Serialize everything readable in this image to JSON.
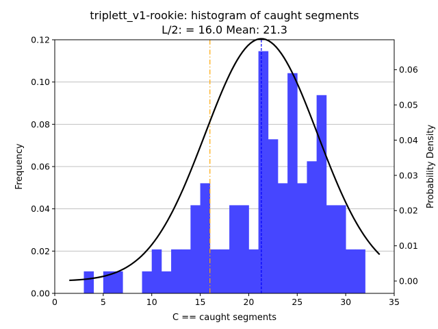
{
  "chart_data": {
    "type": "bar",
    "title": "triplett_v1-rookie: histogram of caught segments",
    "subtitle": "L/2: = 16.0 Mean: 21.3",
    "xlabel": "C == caught segments",
    "ylabel": "Frequency",
    "ylabel_right": "Probability Density",
    "xlim": [
      0,
      35
    ],
    "ylim": [
      0,
      0.12
    ],
    "ylim_right": [
      -0.0035,
      0.0685
    ],
    "x_ticks": [
      "0",
      "5",
      "10",
      "15",
      "20",
      "25",
      "30",
      "35"
    ],
    "y_ticks": [
      "0.00",
      "0.02",
      "0.04",
      "0.06",
      "0.08",
      "0.10",
      "0.12"
    ],
    "y_ticks_right": [
      "0.00",
      "0.01",
      "0.02",
      "0.03",
      "0.04",
      "0.05",
      "0.06"
    ],
    "grid": "horizontal",
    "bar_color": "#4646ff",
    "bins": [
      {
        "x0": 3.0,
        "x1": 4.0,
        "value": 0.0104
      },
      {
        "x0": 5.0,
        "x1": 6.0,
        "value": 0.0104
      },
      {
        "x0": 6.0,
        "x1": 7.0,
        "value": 0.0104
      },
      {
        "x0": 9.0,
        "x1": 10.0,
        "value": 0.0104
      },
      {
        "x0": 10.0,
        "x1": 11.0,
        "value": 0.0208
      },
      {
        "x0": 11.0,
        "x1": 12.0,
        "value": 0.0104
      },
      {
        "x0": 12.0,
        "x1": 13.0,
        "value": 0.0208
      },
      {
        "x0": 13.0,
        "x1": 14.0,
        "value": 0.0208
      },
      {
        "x0": 14.0,
        "x1": 15.0,
        "value": 0.0417
      },
      {
        "x0": 15.0,
        "x1": 16.0,
        "value": 0.0521
      },
      {
        "x0": 16.0,
        "x1": 17.0,
        "value": 0.0208
      },
      {
        "x0": 17.0,
        "x1": 18.0,
        "value": 0.0208
      },
      {
        "x0": 18.0,
        "x1": 19.0,
        "value": 0.0417
      },
      {
        "x0": 19.0,
        "x1": 20.0,
        "value": 0.0417
      },
      {
        "x0": 20.0,
        "x1": 21.0,
        "value": 0.0208
      },
      {
        "x0": 21.0,
        "x1": 22.0,
        "value": 0.1146
      },
      {
        "x0": 22.0,
        "x1": 23.0,
        "value": 0.0729
      },
      {
        "x0": 23.0,
        "x1": 24.0,
        "value": 0.0521
      },
      {
        "x0": 24.0,
        "x1": 25.0,
        "value": 0.1042
      },
      {
        "x0": 25.0,
        "x1": 26.0,
        "value": 0.0521
      },
      {
        "x0": 26.0,
        "x1": 27.0,
        "value": 0.0625
      },
      {
        "x0": 27.0,
        "x1": 28.0,
        "value": 0.0938
      },
      {
        "x0": 28.0,
        "x1": 29.0,
        "value": 0.0417
      },
      {
        "x0": 29.0,
        "x1": 30.0,
        "value": 0.0417
      },
      {
        "x0": 30.0,
        "x1": 31.0,
        "value": 0.0208
      },
      {
        "x0": 31.0,
        "x1": 32.0,
        "value": 0.0208
      }
    ],
    "normal_curve": {
      "mean": 21.3,
      "sd": 5.8,
      "x_range": [
        1.5,
        33.5
      ],
      "axis": "right",
      "color": "#000000"
    },
    "vlines": [
      {
        "x": 16.0,
        "color": "#ffa500",
        "style": "dashdot"
      },
      {
        "x": 21.3,
        "color": "#0000ff",
        "style": "dashed"
      }
    ]
  }
}
